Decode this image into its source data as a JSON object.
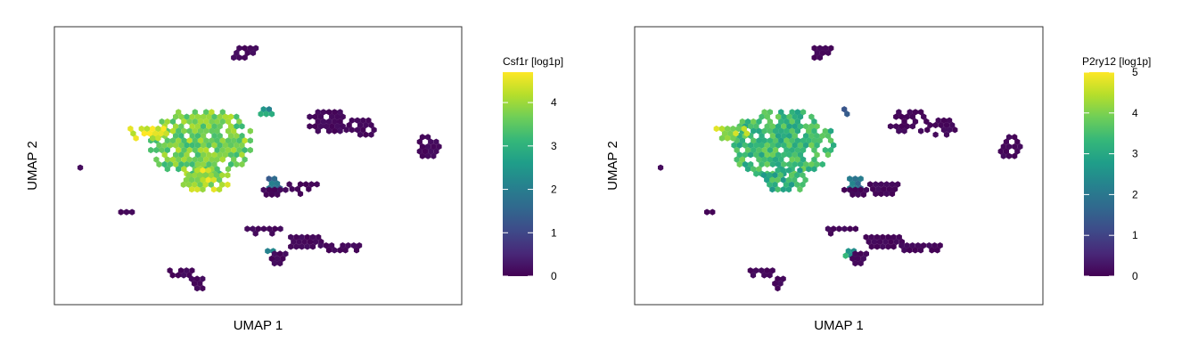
{
  "colors": {
    "frame": "#333333",
    "viridis": [
      "#440154",
      "#482878",
      "#3e4a89",
      "#31688e",
      "#26828e",
      "#1f9e89",
      "#35b779",
      "#6ece58",
      "#b5de2b",
      "#fde725"
    ]
  },
  "chart_data": [
    {
      "type": "heatmap",
      "subtype": "umap-hexbin",
      "xlabel": "UMAP 1",
      "ylabel": "UMAP 2",
      "colorbar": {
        "title": "Csf1r [log1p]",
        "min": 0,
        "max": 4.7,
        "ticks": [
          0,
          1,
          2,
          3,
          4
        ]
      },
      "clusters": [
        {
          "cx": 0.46,
          "cy": 0.91,
          "rx": 0.04,
          "ry": 0.03,
          "value": 0.1
        },
        {
          "cx": 0.36,
          "cy": 0.58,
          "rx": 0.13,
          "ry": 0.13,
          "value": 3.7
        },
        {
          "cx": 0.23,
          "cy": 0.62,
          "rx": 0.05,
          "ry": 0.03,
          "value": 4.4
        },
        {
          "cx": 0.37,
          "cy": 0.45,
          "rx": 0.06,
          "ry": 0.05,
          "value": 4.1
        },
        {
          "cx": 0.52,
          "cy": 0.7,
          "rx": 0.02,
          "ry": 0.02,
          "value": 2.6
        },
        {
          "cx": 0.67,
          "cy": 0.66,
          "rx": 0.05,
          "ry": 0.05,
          "value": 0.1
        },
        {
          "cx": 0.75,
          "cy": 0.64,
          "rx": 0.04,
          "ry": 0.04,
          "value": 0.1
        },
        {
          "cx": 0.92,
          "cy": 0.57,
          "rx": 0.03,
          "ry": 0.05,
          "value": 0.1
        },
        {
          "cx": 0.06,
          "cy": 0.5,
          "rx": 0.01,
          "ry": 0.01,
          "value": 0.1
        },
        {
          "cx": 0.54,
          "cy": 0.43,
          "rx": 0.02,
          "ry": 0.04,
          "value": 1.7
        },
        {
          "cx": 0.54,
          "cy": 0.41,
          "rx": 0.04,
          "ry": 0.02,
          "value": 0.1
        },
        {
          "cx": 0.61,
          "cy": 0.42,
          "rx": 0.04,
          "ry": 0.03,
          "value": 0.1
        },
        {
          "cx": 0.18,
          "cy": 0.34,
          "rx": 0.03,
          "ry": 0.01,
          "value": 0.1
        },
        {
          "cx": 0.51,
          "cy": 0.27,
          "rx": 0.05,
          "ry": 0.02,
          "value": 0.1
        },
        {
          "cx": 0.61,
          "cy": 0.23,
          "rx": 0.05,
          "ry": 0.03,
          "value": 0.1
        },
        {
          "cx": 0.7,
          "cy": 0.21,
          "rx": 0.06,
          "ry": 0.02,
          "value": 0.1
        },
        {
          "cx": 0.53,
          "cy": 0.19,
          "rx": 0.02,
          "ry": 0.02,
          "value": 2.5
        },
        {
          "cx": 0.55,
          "cy": 0.17,
          "rx": 0.03,
          "ry": 0.03,
          "value": 0.1
        },
        {
          "cx": 0.31,
          "cy": 0.12,
          "rx": 0.04,
          "ry": 0.02,
          "value": 0.1
        },
        {
          "cx": 0.35,
          "cy": 0.08,
          "rx": 0.02,
          "ry": 0.03,
          "value": 0.1
        }
      ]
    },
    {
      "type": "heatmap",
      "subtype": "umap-hexbin",
      "xlabel": "UMAP 1",
      "ylabel": "UMAP 2",
      "colorbar": {
        "title": "P2ry12 [log1p]",
        "min": 0,
        "max": 5,
        "ticks": [
          0,
          1,
          2,
          3,
          4,
          5
        ]
      },
      "clusters": [
        {
          "cx": 0.46,
          "cy": 0.91,
          "rx": 0.04,
          "ry": 0.03,
          "value": 0.1
        },
        {
          "cx": 0.36,
          "cy": 0.58,
          "rx": 0.13,
          "ry": 0.13,
          "value": 3.4
        },
        {
          "cx": 0.23,
          "cy": 0.62,
          "rx": 0.05,
          "ry": 0.03,
          "value": 4.3
        },
        {
          "cx": 0.37,
          "cy": 0.45,
          "rx": 0.06,
          "ry": 0.05,
          "value": 3.2
        },
        {
          "cx": 0.52,
          "cy": 0.7,
          "rx": 0.02,
          "ry": 0.02,
          "value": 1.3
        },
        {
          "cx": 0.67,
          "cy": 0.66,
          "rx": 0.05,
          "ry": 0.05,
          "value": 0.1
        },
        {
          "cx": 0.75,
          "cy": 0.64,
          "rx": 0.04,
          "ry": 0.04,
          "value": 0.1
        },
        {
          "cx": 0.92,
          "cy": 0.57,
          "rx": 0.03,
          "ry": 0.05,
          "value": 0.1
        },
        {
          "cx": 0.06,
          "cy": 0.5,
          "rx": 0.01,
          "ry": 0.01,
          "value": 0.1
        },
        {
          "cx": 0.54,
          "cy": 0.43,
          "rx": 0.02,
          "ry": 0.04,
          "value": 1.8
        },
        {
          "cx": 0.54,
          "cy": 0.41,
          "rx": 0.04,
          "ry": 0.02,
          "value": 0.1
        },
        {
          "cx": 0.61,
          "cy": 0.42,
          "rx": 0.04,
          "ry": 0.03,
          "value": 0.1
        },
        {
          "cx": 0.18,
          "cy": 0.34,
          "rx": 0.03,
          "ry": 0.01,
          "value": 0.1
        },
        {
          "cx": 0.51,
          "cy": 0.27,
          "rx": 0.05,
          "ry": 0.02,
          "value": 0.1
        },
        {
          "cx": 0.61,
          "cy": 0.23,
          "rx": 0.05,
          "ry": 0.03,
          "value": 0.1
        },
        {
          "cx": 0.7,
          "cy": 0.21,
          "rx": 0.06,
          "ry": 0.02,
          "value": 0.1
        },
        {
          "cx": 0.53,
          "cy": 0.19,
          "rx": 0.02,
          "ry": 0.02,
          "value": 2.8
        },
        {
          "cx": 0.55,
          "cy": 0.17,
          "rx": 0.03,
          "ry": 0.03,
          "value": 0.1
        },
        {
          "cx": 0.31,
          "cy": 0.12,
          "rx": 0.04,
          "ry": 0.02,
          "value": 0.1
        },
        {
          "cx": 0.35,
          "cy": 0.08,
          "rx": 0.02,
          "ry": 0.03,
          "value": 0.1
        }
      ]
    }
  ]
}
